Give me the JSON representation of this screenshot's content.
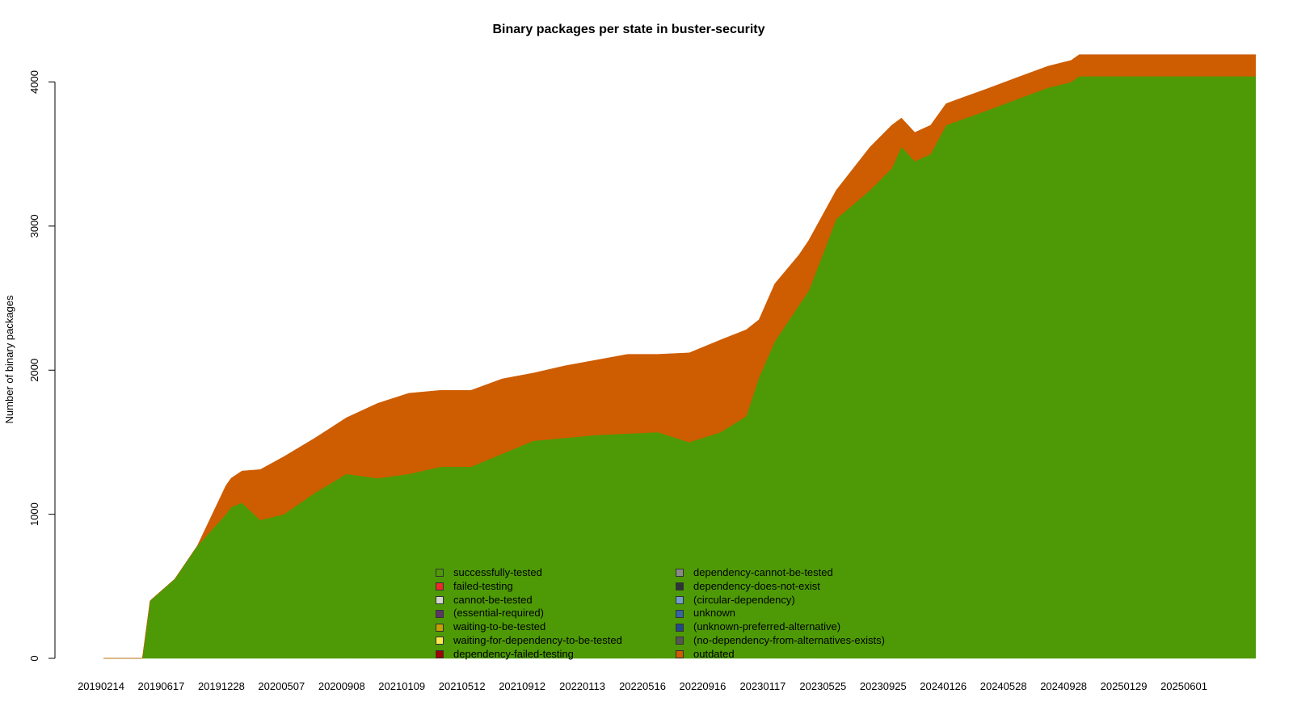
{
  "chart_data": {
    "type": "area",
    "title": "Binary packages per state in buster-security",
    "xlabel": "",
    "ylabel": "Number of binary packages",
    "ylim": [
      0,
      4200
    ],
    "yticks": [
      0,
      1000,
      2000,
      3000,
      4000
    ],
    "xticks": [
      "20190214",
      "20190617",
      "20191228",
      "20200507",
      "20200908",
      "20210109",
      "20210512",
      "20210912",
      "20220113",
      "20220516",
      "20220916",
      "20230117",
      "20230525",
      "20230925",
      "20240126",
      "20240528",
      "20240928",
      "20250129",
      "20250601"
    ],
    "x": [
      "2019-04-15",
      "2019-06-30",
      "2019-07-15",
      "2019-09-01",
      "2019-10-15",
      "2019-12-10",
      "2019-12-20",
      "2020-01-10",
      "2020-02-15",
      "2020-04-01",
      "2020-06-01",
      "2020-08-01",
      "2020-10-01",
      "2020-12-01",
      "2021-02-01",
      "2021-04-01",
      "2021-06-01",
      "2021-08-01",
      "2021-10-01",
      "2021-12-01",
      "2022-02-01",
      "2022-04-01",
      "2022-06-01",
      "2022-08-01",
      "2022-09-20",
      "2022-10-15",
      "2022-11-15",
      "2023-01-01",
      "2023-01-20",
      "2023-03-15",
      "2023-05-20",
      "2023-07-01",
      "2023-07-20",
      "2023-08-15",
      "2023-09-15",
      "2023-10-15",
      "2023-11-15",
      "2024-01-01",
      "2024-03-01",
      "2024-05-01",
      "2024-06-15",
      "2024-07-01",
      "2024-09-01",
      "2024-12-01",
      "2025-03-01",
      "2025-06-10"
    ],
    "series": [
      {
        "name": "successfully-tested",
        "color": "#4e9a06",
        "values": [
          0,
          0,
          400,
          550,
          780,
          1000,
          1050,
          1080,
          960,
          1000,
          1150,
          1280,
          1250,
          1280,
          1330,
          1330,
          1420,
          1510,
          1530,
          1550,
          1560,
          1570,
          1500,
          1570,
          1680,
          1950,
          2200,
          2450,
          2550,
          3050,
          3250,
          3400,
          3550,
          3450,
          3500,
          3700,
          3740,
          3800,
          3880,
          3960,
          4000,
          4040,
          4040,
          4040,
          4040,
          4040
        ]
      },
      {
        "name": "failed-testing",
        "color": "#ef2929",
        "values": [
          0,
          0,
          0,
          0,
          0,
          0,
          0,
          0,
          0,
          0,
          0,
          0,
          0,
          0,
          0,
          0,
          0,
          0,
          0,
          0,
          0,
          0,
          0,
          0,
          0,
          0,
          0,
          0,
          0,
          0,
          0,
          0,
          0,
          0,
          0,
          0,
          0,
          0,
          0,
          0,
          0,
          0,
          0,
          0,
          0,
          0
        ]
      },
      {
        "name": "cannot-be-tested",
        "color": "#d3d7cf",
        "values": [
          0,
          0,
          0,
          0,
          0,
          0,
          0,
          0,
          0,
          0,
          0,
          0,
          0,
          0,
          0,
          0,
          0,
          0,
          0,
          0,
          0,
          0,
          0,
          0,
          0,
          0,
          0,
          0,
          0,
          0,
          0,
          0,
          0,
          0,
          0,
          0,
          0,
          0,
          0,
          0,
          0,
          0,
          0,
          0,
          0,
          0
        ]
      },
      {
        "name": "(essential-required)",
        "color": "#5c3566",
        "values": [
          0,
          0,
          0,
          0,
          0,
          0,
          0,
          0,
          0,
          0,
          0,
          0,
          0,
          0,
          0,
          0,
          0,
          0,
          0,
          0,
          0,
          0,
          0,
          0,
          0,
          0,
          0,
          0,
          0,
          0,
          0,
          0,
          0,
          0,
          0,
          0,
          0,
          0,
          0,
          0,
          0,
          0,
          0,
          0,
          0,
          0
        ]
      },
      {
        "name": "waiting-to-be-tested",
        "color": "#c4a000",
        "values": [
          0,
          0,
          0,
          0,
          0,
          0,
          0,
          0,
          0,
          0,
          0,
          0,
          0,
          0,
          0,
          0,
          0,
          0,
          0,
          0,
          0,
          0,
          0,
          0,
          0,
          0,
          0,
          0,
          0,
          0,
          0,
          0,
          0,
          0,
          0,
          0,
          0,
          0,
          0,
          0,
          0,
          0,
          0,
          0,
          0,
          0
        ]
      },
      {
        "name": "waiting-for-dependency-to-be-tested",
        "color": "#fce94f",
        "values": [
          0,
          0,
          0,
          0,
          0,
          0,
          0,
          0,
          0,
          0,
          0,
          0,
          0,
          0,
          0,
          0,
          0,
          0,
          0,
          0,
          0,
          0,
          0,
          0,
          0,
          0,
          0,
          0,
          0,
          0,
          0,
          0,
          0,
          0,
          0,
          0,
          0,
          0,
          0,
          0,
          0,
          0,
          0,
          0,
          0,
          0
        ]
      },
      {
        "name": "dependency-failed-testing",
        "color": "#a40000",
        "values": [
          0,
          0,
          0,
          0,
          0,
          0,
          0,
          0,
          0,
          0,
          0,
          0,
          0,
          0,
          0,
          0,
          0,
          0,
          0,
          0,
          0,
          0,
          0,
          0,
          0,
          0,
          0,
          0,
          0,
          0,
          0,
          0,
          0,
          0,
          0,
          0,
          0,
          0,
          0,
          0,
          0,
          0,
          0,
          0,
          0,
          0
        ]
      },
      {
        "name": "dependency-cannot-be-tested",
        "color": "#888a85",
        "values": [
          0,
          0,
          0,
          0,
          0,
          0,
          0,
          0,
          0,
          0,
          0,
          0,
          0,
          0,
          0,
          0,
          0,
          0,
          0,
          0,
          0,
          0,
          0,
          0,
          0,
          0,
          0,
          0,
          0,
          0,
          0,
          0,
          0,
          0,
          0,
          0,
          0,
          0,
          0,
          0,
          0,
          0,
          0,
          0,
          0,
          0
        ]
      },
      {
        "name": "dependency-does-not-exist",
        "color": "#2e3436",
        "values": [
          0,
          0,
          0,
          0,
          0,
          0,
          0,
          0,
          0,
          0,
          0,
          0,
          0,
          0,
          0,
          0,
          0,
          0,
          0,
          0,
          0,
          0,
          0,
          0,
          0,
          0,
          0,
          0,
          0,
          0,
          0,
          0,
          0,
          0,
          0,
          0,
          0,
          0,
          0,
          0,
          0,
          0,
          0,
          0,
          0,
          0
        ]
      },
      {
        "name": "(circular-dependency)",
        "color": "#729fcf",
        "values": [
          0,
          0,
          0,
          0,
          0,
          0,
          0,
          0,
          0,
          0,
          0,
          0,
          0,
          0,
          0,
          0,
          0,
          0,
          0,
          0,
          0,
          0,
          0,
          0,
          0,
          0,
          0,
          0,
          0,
          0,
          0,
          0,
          0,
          0,
          0,
          0,
          0,
          0,
          0,
          0,
          0,
          0,
          0,
          0,
          0,
          0
        ]
      },
      {
        "name": "unknown",
        "color": "#3465a4",
        "values": [
          0,
          0,
          0,
          0,
          0,
          0,
          0,
          0,
          0,
          0,
          0,
          0,
          0,
          0,
          0,
          0,
          0,
          0,
          0,
          0,
          0,
          0,
          0,
          0,
          0,
          0,
          0,
          0,
          0,
          0,
          0,
          0,
          0,
          0,
          0,
          0,
          0,
          0,
          0,
          0,
          0,
          0,
          0,
          0,
          0,
          0
        ]
      },
      {
        "name": "(unknown-preferred-alternative)",
        "color": "#204a87",
        "values": [
          0,
          0,
          0,
          0,
          0,
          0,
          0,
          0,
          0,
          0,
          0,
          0,
          0,
          0,
          0,
          0,
          0,
          0,
          0,
          0,
          0,
          0,
          0,
          0,
          0,
          0,
          0,
          0,
          0,
          0,
          0,
          0,
          0,
          0,
          0,
          0,
          0,
          0,
          0,
          0,
          0,
          0,
          0,
          0,
          0,
          0
        ]
      },
      {
        "name": "(no-dependency-from-alternatives-exists)",
        "color": "#555753",
        "values": [
          0,
          0,
          0,
          0,
          0,
          0,
          0,
          0,
          0,
          0,
          0,
          0,
          0,
          0,
          0,
          0,
          0,
          0,
          0,
          0,
          0,
          0,
          0,
          0,
          0,
          0,
          0,
          0,
          0,
          0,
          0,
          0,
          0,
          0,
          0,
          0,
          0,
          0,
          0,
          0,
          0,
          0,
          0,
          0,
          0,
          0
        ]
      },
      {
        "name": "outdated",
        "color": "#ce5c00",
        "values": [
          0,
          0,
          0,
          0,
          0,
          200,
          200,
          220,
          350,
          400,
          380,
          390,
          520,
          560,
          530,
          530,
          520,
          470,
          500,
          520,
          550,
          540,
          620,
          640,
          600,
          400,
          400,
          350,
          350,
          200,
          300,
          300,
          200,
          200,
          200,
          150,
          150,
          150,
          150,
          150,
          150,
          150,
          150,
          150,
          150,
          150
        ]
      }
    ],
    "legend_position": "bottom-center"
  }
}
